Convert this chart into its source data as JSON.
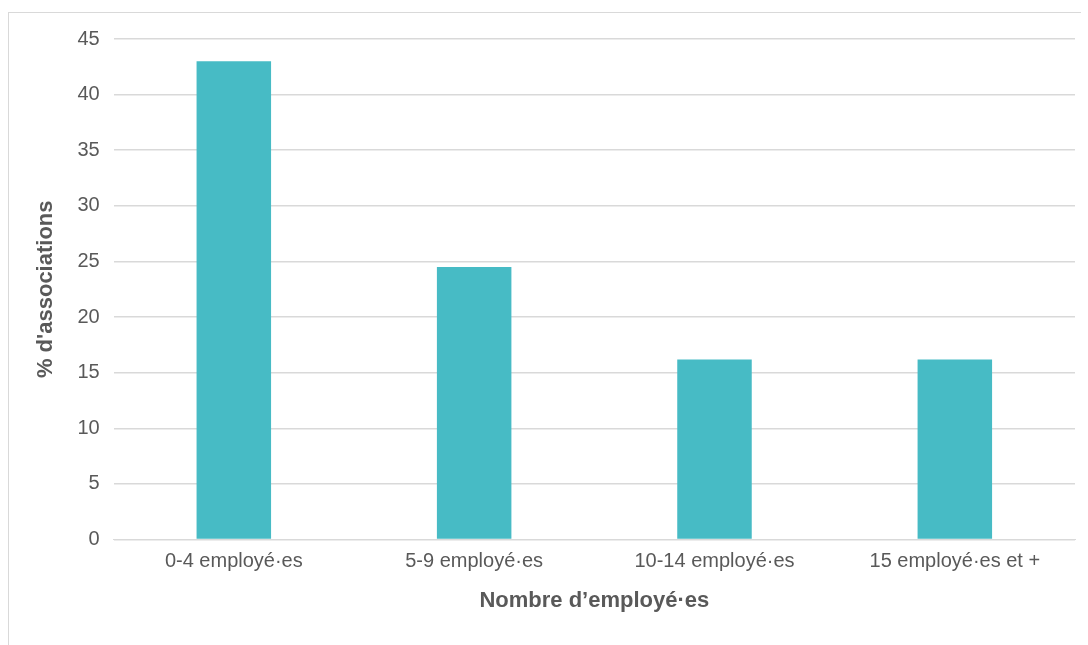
{
  "chart_data": {
    "type": "bar",
    "xlabel": "Nombre d’employé·es",
    "ylabel": "% d'associations",
    "categories": [
      "0-4 employé·es",
      "5-9 employé·es",
      "10-14 employé·es",
      "15 employé·es et +"
    ],
    "values": [
      43,
      24.5,
      16.2,
      16.2
    ],
    "color": "#47bbc5",
    "ylim": [
      0,
      45
    ],
    "yticks": [
      0,
      5,
      10,
      15,
      20,
      25,
      30,
      35,
      40,
      45
    ],
    "grid": "y",
    "legend": false
  }
}
